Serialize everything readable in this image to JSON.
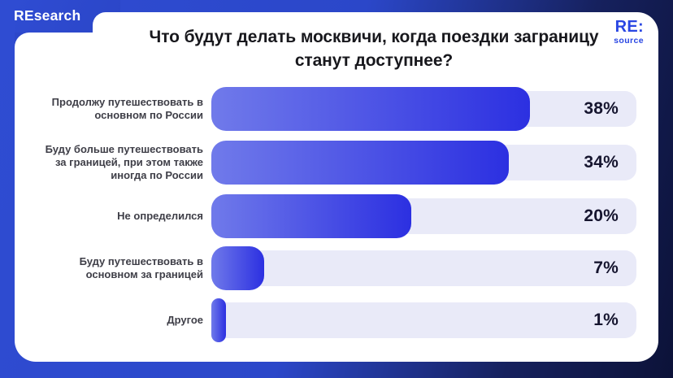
{
  "header": {
    "brand": "REsearch"
  },
  "logo": {
    "line1": "RE:",
    "line2": "source"
  },
  "chart_data": {
    "type": "bar",
    "orientation": "horizontal",
    "title": "Что будут делать москвичи, когда поездки заграницу станут доступнее?",
    "unit": "%",
    "categories": [
      "Продолжу путешествовать в основном по России",
      "Буду больше путешествовать за границей, при этом также иногда по России",
      "Не определился",
      "Буду путешествовать в основном за границей",
      "Другое"
    ],
    "values": [
      38,
      34,
      20,
      7,
      1
    ],
    "value_labels": [
      "38%",
      "34%",
      "20%",
      "7%",
      "1%"
    ],
    "bar_widths_pct": [
      75,
      70,
      47,
      12.5,
      3.4
    ],
    "legend": false,
    "grid": false,
    "colors": {
      "bar_gradient_start": "#707AEA",
      "bar_gradient_end": "#2C30E1",
      "track": "#E9EAF8",
      "label_text": "#3E3E47",
      "value_text": "#16152F",
      "accent_blue": "#2F4CD2",
      "dark_navy": "#0C1238"
    }
  }
}
